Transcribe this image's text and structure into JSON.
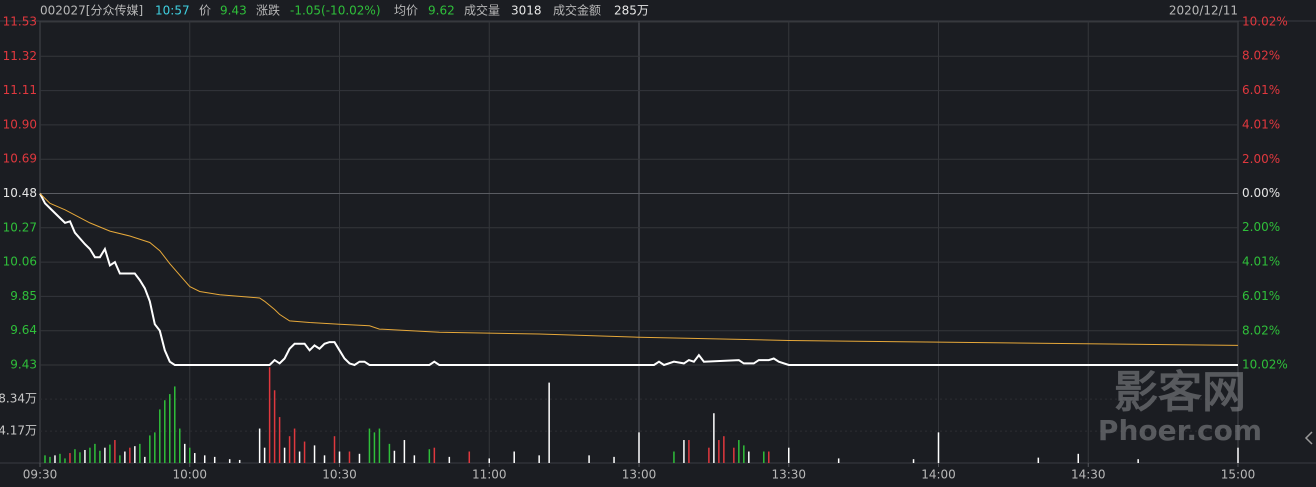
{
  "header": {
    "symbol": "002027[分众传媒]",
    "time": "10:57",
    "price_label": "价",
    "price": "9.43",
    "change_label": "涨跌",
    "change": "-1.05(-10.02%)",
    "avg_label": "均价",
    "avg": "9.62",
    "volume_label": "成交量",
    "volume": "3018",
    "amount_label": "成交金额",
    "amount": "285万",
    "date": "2020/12/11"
  },
  "watermark": {
    "text": "影客网",
    "url": "Phoer.com"
  },
  "chart_data": [
    {
      "type": "line",
      "xlim": [
        0,
        240
      ],
      "ylim": [
        9.43,
        11.53
      ],
      "yticks": [
        11.53,
        11.32,
        11.11,
        {
          "value": 10.9,
          "label": "10.90"
        },
        10.69,
        10.48,
        10.27,
        10.06,
        9.85,
        9.64,
        9.43
      ],
      "y2lim": [
        -10.02,
        10.02
      ],
      "y2ticks": [
        {
          "value": 10.02,
          "label": "10.02%"
        },
        {
          "value": 8.02,
          "label": "8.02%"
        },
        {
          "value": 6.01,
          "label": "6.01%"
        },
        {
          "value": 4.01,
          "label": "4.01%"
        },
        {
          "value": 2,
          "label": "2.00%"
        },
        {
          "value": 0,
          "label": "0.00%"
        },
        {
          "value": -2,
          "label": "2.00%"
        },
        {
          "value": -4.01,
          "label": "4.01%"
        },
        {
          "value": -6.01,
          "label": "6.01%"
        },
        {
          "value": -8.02,
          "label": "8.02%"
        },
        {
          "value": -10.02,
          "label": "10.02%"
        }
      ],
      "grid": true,
      "series": [
        {
          "color": "#ffffff",
          "x": [
            0,
            1,
            3,
            4,
            5,
            6,
            7,
            9,
            10,
            11,
            12,
            13,
            14,
            15,
            16,
            19,
            20,
            21,
            22,
            23,
            24,
            25,
            26,
            27,
            46,
            47,
            48,
            49,
            50,
            51,
            53,
            54,
            55,
            56,
            57,
            58,
            59,
            60,
            61,
            62,
            63,
            64,
            65,
            66,
            78,
            79,
            80,
            123,
            124,
            125,
            127,
            129,
            130,
            131,
            132,
            133,
            140,
            141,
            143,
            144,
            146,
            147,
            148,
            150,
            240
          ],
          "values": [
            10.48,
            10.42,
            10.36,
            10.33,
            10.3,
            10.31,
            10.24,
            10.17,
            10.14,
            10.09,
            10.09,
            10.14,
            10.04,
            10.06,
            9.99,
            9.99,
            9.95,
            9.9,
            9.82,
            9.68,
            9.64,
            9.52,
            9.45,
            9.43,
            9.43,
            9.46,
            9.44,
            9.47,
            9.53,
            9.56,
            9.56,
            9.52,
            9.55,
            9.53,
            9.56,
            9.57,
            9.57,
            9.52,
            9.47,
            9.44,
            9.43,
            9.45,
            9.45,
            9.43,
            9.43,
            9.45,
            9.43,
            9.43,
            9.45,
            9.43,
            9.45,
            9.44,
            9.46,
            9.45,
            9.49,
            9.45,
            9.46,
            9.44,
            9.44,
            9.46,
            9.46,
            9.47,
            9.45,
            9.43,
            9.43
          ]
        },
        {
          "color": "#e6a83a",
          "x": [
            0,
            2,
            5,
            10,
            14,
            18,
            22,
            24,
            26,
            28,
            30,
            32,
            36,
            40,
            44,
            45,
            47,
            48,
            50,
            54,
            60,
            66,
            68,
            80,
            100,
            120,
            150,
            180,
            240
          ],
          "values": [
            10.48,
            10.42,
            10.38,
            10.3,
            10.25,
            10.22,
            10.18,
            10.13,
            10.05,
            9.98,
            9.91,
            9.88,
            9.86,
            9.85,
            9.84,
            9.82,
            9.77,
            9.74,
            9.7,
            9.69,
            9.68,
            9.67,
            9.65,
            9.63,
            9.62,
            9.6,
            9.58,
            9.57,
            9.55
          ]
        }
      ]
    },
    {
      "type": "bar",
      "xlim": [
        0,
        240
      ],
      "xticks": [
        {
          "value": 0,
          "label": "09:30"
        },
        {
          "value": 30,
          "label": "10:00"
        },
        {
          "value": 60,
          "label": "10:30"
        },
        {
          "value": 90,
          "label": "11:00"
        },
        {
          "value": 120,
          "label": "13:00"
        },
        {
          "value": 150,
          "label": "13:30"
        },
        {
          "value": 180,
          "label": "14:00"
        },
        {
          "value": 210,
          "label": "14:30"
        },
        {
          "value": 240,
          "label": "15:00"
        }
      ],
      "ylim": [
        0,
        12.8
      ],
      "yticks": [
        {
          "value": 8.34,
          "label": "8.34万"
        },
        {
          "value": 4.17,
          "label": "4.17万"
        }
      ],
      "series": [
        {
          "color": "#2fbf3a",
          "x": [
            1,
            2,
            4,
            5,
            7,
            8,
            10,
            11,
            12,
            14,
            16,
            20,
            22,
            23,
            24,
            25,
            26,
            27,
            28,
            30,
            66,
            67,
            68,
            70,
            78,
            127,
            140,
            141,
            145
          ],
          "values": [
            1.0,
            0.8,
            1.2,
            0.6,
            1.8,
            1.4,
            2.0,
            2.5,
            1.6,
            2.4,
            1.0,
            2.5,
            3.6,
            4.0,
            7.0,
            8.2,
            9.0,
            10.0,
            4.5,
            2.0,
            4.5,
            4.0,
            4.5,
            2.5,
            1.8,
            1.5,
            3.0,
            2.3,
            1.5
          ]
        },
        {
          "color": "#e0383e",
          "x": [
            6,
            15,
            18,
            46,
            47,
            48,
            50,
            51,
            53,
            59,
            62,
            79,
            86,
            130,
            134,
            136,
            137,
            139,
            146
          ],
          "values": [
            1.3,
            3.0,
            2.0,
            12.5,
            9.5,
            6.0,
            3.5,
            4.5,
            2.8,
            3.5,
            1.5,
            2.0,
            1.5,
            3.0,
            2.0,
            3.0,
            3.5,
            2.0,
            1.5
          ]
        },
        {
          "color": "#ffffff",
          "x": [
            3,
            9,
            13,
            17,
            19,
            21,
            29,
            31,
            33,
            35,
            38,
            40,
            44,
            45,
            49,
            52,
            55,
            57,
            60,
            64,
            71,
            73,
            75,
            82,
            90,
            95,
            100,
            102,
            110,
            115,
            120,
            129,
            135,
            142,
            150,
            160,
            175,
            180,
            200,
            208,
            220,
            240
          ],
          "values": [
            1.0,
            1.7,
            2.0,
            1.5,
            2.2,
            0.8,
            2.5,
            1.3,
            1.0,
            0.8,
            0.5,
            0.4,
            4.5,
            2.0,
            2.0,
            1.5,
            2.3,
            1.0,
            1.5,
            1.2,
            1.6,
            3.0,
            1.0,
            0.8,
            0.6,
            1.5,
            1.0,
            10.5,
            1.0,
            0.8,
            4.0,
            3.0,
            6.5,
            1.5,
            2.0,
            0.6,
            0.5,
            4.0,
            0.7,
            1.2,
            0.5,
            2.0
          ]
        }
      ]
    }
  ]
}
